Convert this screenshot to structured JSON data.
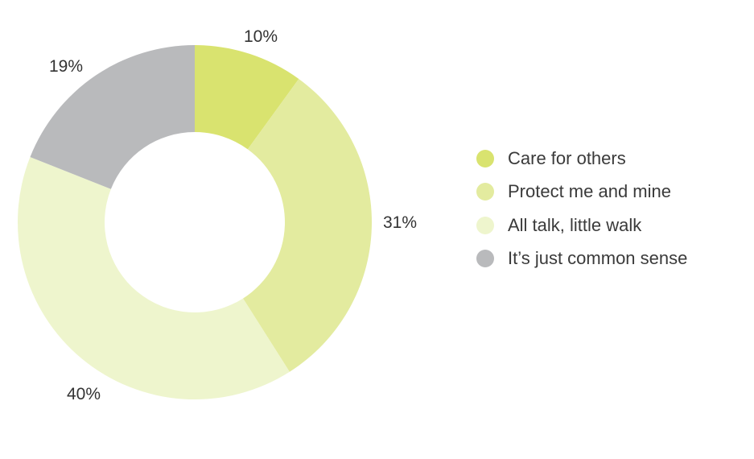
{
  "chart_data": {
    "type": "pie",
    "donut": true,
    "title": "",
    "legend_position": "right",
    "slices": [
      {
        "name": "Care for others",
        "value": 10,
        "label": "10%",
        "color": "#d9e36f"
      },
      {
        "name": "Protect me and mine",
        "value": 31,
        "label": "31%",
        "color": "#e3eb9f"
      },
      {
        "name": "All talk, little walk",
        "value": 40,
        "label": "40%",
        "color": "#eef5cd"
      },
      {
        "name": "It’s just common sense",
        "value": 19,
        "label": "19%",
        "color": "#b9babc"
      }
    ]
  }
}
